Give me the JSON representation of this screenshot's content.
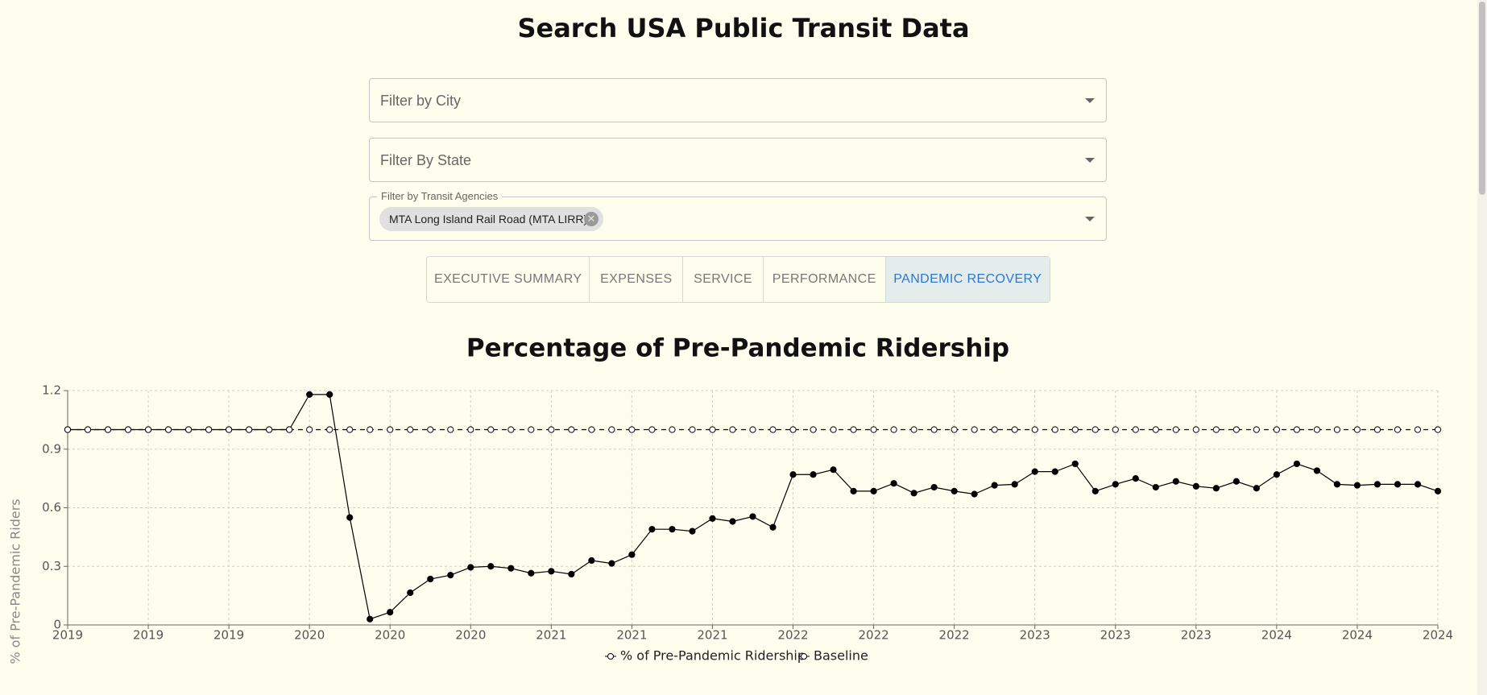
{
  "header": {
    "title": "Search USA Public Transit Data"
  },
  "filters": {
    "city": "Filter by City",
    "state": "Filter By State",
    "agencies_label": "Filter by Transit Agencies",
    "agency_chip": "MTA Long Island Rail Road (MTA LIRR)"
  },
  "tabs": {
    "items": [
      "EXECUTIVE SUMMARY",
      "EXPENSES",
      "SERVICE",
      "PERFORMANCE",
      "PANDEMIC RECOVERY"
    ],
    "active": 4
  },
  "chart_data": {
    "type": "line",
    "title": "Percentage of Pre-Pandemic Ridership",
    "y_label": "% of Pre-Pandemic Riders",
    "categories": [
      "2019",
      null,
      null,
      null,
      "2019",
      null,
      null,
      null,
      "2019",
      null,
      null,
      null,
      "2020",
      null,
      null,
      null,
      "2020",
      null,
      null,
      null,
      "2020",
      null,
      null,
      null,
      "2021",
      null,
      null,
      null,
      "2021",
      null,
      null,
      null,
      "2021",
      null,
      null,
      null,
      "2022",
      null,
      null,
      null,
      "2022",
      null,
      null,
      null,
      "2022",
      null,
      null,
      null,
      "2023",
      null,
      null,
      null,
      "2023",
      null,
      null,
      null,
      "2023",
      null,
      null,
      null,
      "2024",
      null,
      null,
      null,
      "2024",
      null,
      null,
      null,
      "2024"
    ],
    "series": [
      {
        "name": "% of Pre-Pandemic Ridership",
        "color": "#000000",
        "dashed": false,
        "values": [
          1,
          1,
          1,
          1,
          1,
          1,
          1,
          1,
          1,
          1,
          1,
          1,
          1.18,
          1.18,
          0.55,
          0.03,
          0.065,
          0.165,
          0.235,
          0.255,
          0.295,
          0.3,
          0.29,
          0.265,
          0.275,
          0.26,
          0.33,
          0.315,
          0.36,
          0.49,
          0.49,
          0.48,
          0.545,
          0.53,
          0.555,
          0.5,
          0.77,
          0.77,
          0.795,
          0.685,
          0.685,
          0.725,
          0.675,
          0.705,
          0.685,
          0.67,
          0.715,
          0.72,
          0.785,
          0.785,
          0.825,
          0.685,
          0.72,
          0.75,
          0.705,
          0.735,
          0.71,
          0.7,
          0.735,
          0.7,
          0.77,
          0.825,
          0.79,
          0.72,
          0.715,
          0.72,
          0.72,
          0.72,
          0.685
        ]
      },
      {
        "name": "Baseline",
        "color": "#000000",
        "dashed": true,
        "values": [
          1,
          1,
          1,
          1,
          1,
          1,
          1,
          1,
          1,
          1,
          1,
          1,
          1,
          1,
          1,
          1,
          1,
          1,
          1,
          1,
          1,
          1,
          1,
          1,
          1,
          1,
          1,
          1,
          1,
          1,
          1,
          1,
          1,
          1,
          1,
          1,
          1,
          1,
          1,
          1,
          1,
          1,
          1,
          1,
          1,
          1,
          1,
          1,
          1,
          1,
          1,
          1,
          1,
          1,
          1,
          1,
          1,
          1,
          1,
          1,
          1,
          1,
          1,
          1,
          1,
          1,
          1,
          1,
          1
        ]
      }
    ],
    "ylim": [
      0,
      1.2
    ],
    "yticks": [
      0,
      0.3,
      0.6,
      0.9,
      1.2
    ],
    "grid": true,
    "legend": "bottom"
  }
}
